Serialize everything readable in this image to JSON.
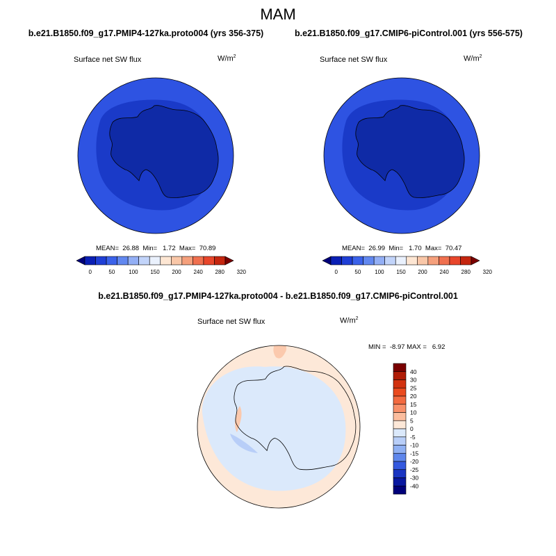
{
  "season": "MAM",
  "panels": {
    "left": {
      "case": "b.e21.B1850.f09_g17.PMIP4-127ka.proto004 (yrs 356-375)",
      "variable": "Surface net SW flux",
      "units": "W/m",
      "units_exp": "2",
      "mean_label": "MEAN=",
      "mean": "26.88",
      "min_label": "Min=",
      "min": "1.72",
      "max_label": "Max=",
      "max": "70.89"
    },
    "right": {
      "case": "b.e21.B1850.f09_g17.CMIP6-piControl.001 (yrs 556-575)",
      "variable": "Surface net SW flux",
      "units": "W/m",
      "units_exp": "2",
      "mean_label": "MEAN=",
      "mean": "26.99",
      "min_label": "Min=",
      "min": "1.70",
      "max_label": "Max=",
      "max": "70.47"
    },
    "diff": {
      "case": "b.e21.B1850.f09_g17.PMIP4-127ka.proto004 - b.e21.B1850.f09_g17.CMIP6-piControl.001",
      "variable": "Surface net SW flux",
      "units": "W/m",
      "units_exp": "2",
      "minmax": "MIN =  -8.97 MAX =   6.92"
    }
  },
  "colorbar_abs": {
    "ticks": [
      "0",
      "50",
      "100",
      "150",
      "200",
      "240",
      "280",
      "320"
    ],
    "colors": [
      "#00007a",
      "#0a1fb5",
      "#1f3fd6",
      "#3b62ea",
      "#6288f0",
      "#93aff5",
      "#c2d4fa",
      "#eaf1fd",
      "#fde6d3",
      "#f9c7a8",
      "#f5a07c",
      "#f0704f",
      "#e8462b",
      "#c5260f",
      "#7a0000"
    ]
  },
  "colorbar_diff": {
    "ticks": [
      "40",
      "30",
      "25",
      "20",
      "15",
      "10",
      "5",
      "0",
      "-5",
      "-10",
      "-15",
      "-20",
      "-25",
      "-30",
      "-40"
    ],
    "colors": [
      "#7a0000",
      "#b01c06",
      "#d23210",
      "#ea4a1e",
      "#f36a40",
      "#f8906a",
      "#fbbd9e",
      "#fde8d8",
      "#dbe9fb",
      "#b8cef8",
      "#8fb0f3",
      "#5e86ec",
      "#3459df",
      "#1a35c2",
      "#0918a0",
      "#00007a"
    ]
  },
  "map_colors": {
    "outer_band": "#2e53e2",
    "inner_band": "#1a3ac8",
    "continent": "#0f2aa6",
    "diff_positive": "#fde8d8",
    "diff_negative": "#dbe9fb",
    "diff_strong_positive": "#fbc9ad",
    "diff_strong_negative": "#b8cef8"
  }
}
